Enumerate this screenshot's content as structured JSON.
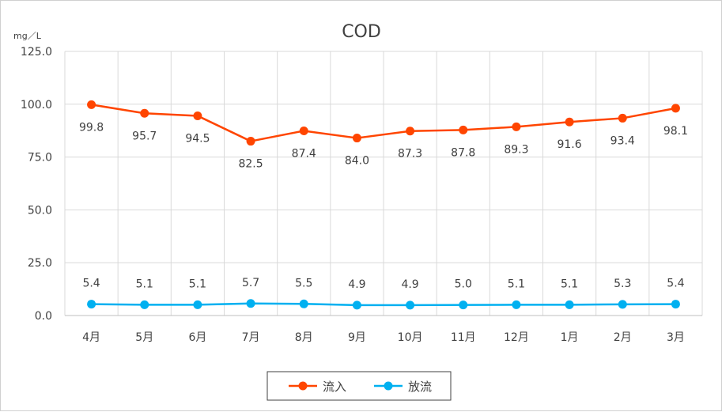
{
  "chart_data": {
    "type": "line",
    "title": "COD",
    "unit_label": "mg／L",
    "categories": [
      "4月",
      "5月",
      "6月",
      "7月",
      "8月",
      "9月",
      "10月",
      "11月",
      "12月",
      "1月",
      "2月",
      "3月"
    ],
    "ylim": [
      0,
      125
    ],
    "y_ticks": [
      "0.0",
      "25.0",
      "50.0",
      "75.0",
      "100.0",
      "125.0"
    ],
    "grid": true,
    "legend_position": "bottom",
    "series": [
      {
        "name": "流入",
        "color": "#ff4500",
        "values": [
          99.8,
          95.7,
          94.5,
          82.5,
          87.4,
          84.0,
          87.3,
          87.8,
          89.3,
          91.6,
          93.4,
          98.1
        ],
        "labels": [
          "99.8",
          "95.7",
          "94.5",
          "82.5",
          "87.4",
          "84.0",
          "87.3",
          "87.8",
          "89.3",
          "91.6",
          "93.4",
          "98.1"
        ]
      },
      {
        "name": "放流",
        "color": "#00b0f0",
        "values": [
          5.4,
          5.1,
          5.1,
          5.7,
          5.5,
          4.9,
          4.9,
          5.0,
          5.1,
          5.1,
          5.3,
          5.4
        ],
        "labels": [
          "5.4",
          "5.1",
          "5.1",
          "5.7",
          "5.5",
          "4.9",
          "4.9",
          "5.0",
          "5.1",
          "5.1",
          "5.3",
          "5.4"
        ]
      }
    ]
  }
}
